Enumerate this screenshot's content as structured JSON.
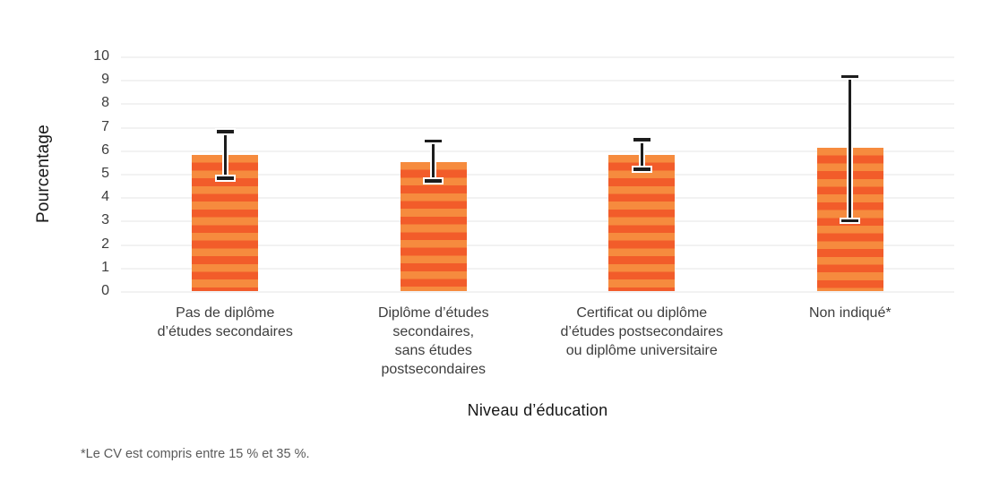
{
  "chart_data": {
    "type": "bar",
    "xlabel": "Niveau d’éducation",
    "ylabel": "Pourcentage",
    "ylim": [
      0,
      10
    ],
    "ytick_step": 1,
    "grid": "horizontal",
    "legend": "none",
    "categories": [
      "Pas de diplôme\nd’études secondaires",
      "Diplôme d’études\nsecondaires,\nsans études\npostsecondaires",
      "Certificat ou diplôme\nd’études postsecondaires\nou diplôme universitaire",
      "Non indiqué*"
    ],
    "values": [
      5.8,
      5.5,
      5.8,
      6.1
    ],
    "error_bars": [
      [
        4.8,
        6.8
      ],
      [
        4.7,
        6.4
      ],
      [
        5.2,
        6.45
      ],
      [
        3.0,
        9.15
      ]
    ],
    "colors": {
      "bar_stripe_light": "#f68b3e",
      "bar_stripe_dark": "#f25c2a",
      "error_bar": "#1d1d1d",
      "gridline": "#e4e4e4",
      "axis_text": "#3d3d3d"
    }
  },
  "footnote": "*Le CV est compris entre 15 % et 35 %."
}
